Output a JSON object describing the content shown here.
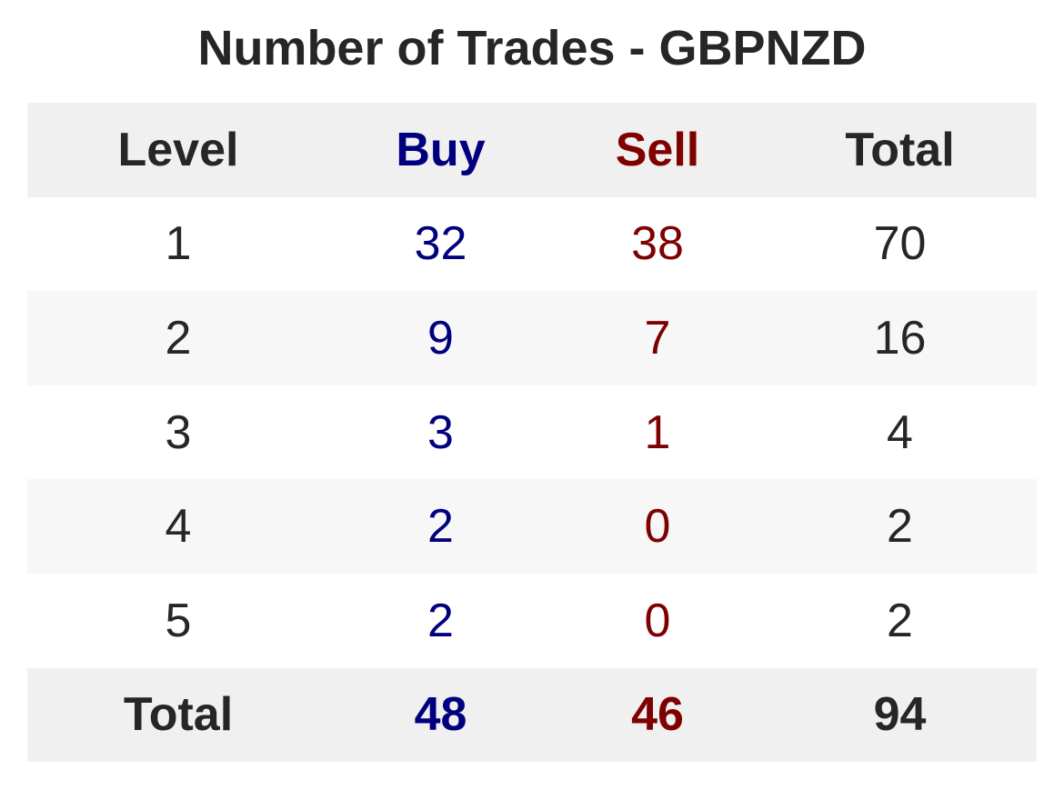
{
  "chart_data": {
    "type": "table",
    "title": "Number of Trades - GBPNZD",
    "columns": [
      "Level",
      "Buy",
      "Sell",
      "Total"
    ],
    "rows": [
      {
        "level": "1",
        "buy": "32",
        "sell": "38",
        "total": "70"
      },
      {
        "level": "2",
        "buy": "9",
        "sell": "7",
        "total": "16"
      },
      {
        "level": "3",
        "buy": "3",
        "sell": "1",
        "total": "4"
      },
      {
        "level": "4",
        "buy": "2",
        "sell": "0",
        "total": "2"
      },
      {
        "level": "5",
        "buy": "2",
        "sell": "0",
        "total": "2"
      }
    ],
    "totals": {
      "label": "Total",
      "buy": "48",
      "sell": "46",
      "total": "94"
    },
    "colors": {
      "buy": "#00007f",
      "sell": "#7f0000",
      "text": "#262626",
      "header_bg": "#f0f0f0",
      "stripe_bg": "#f7f7f7"
    }
  }
}
